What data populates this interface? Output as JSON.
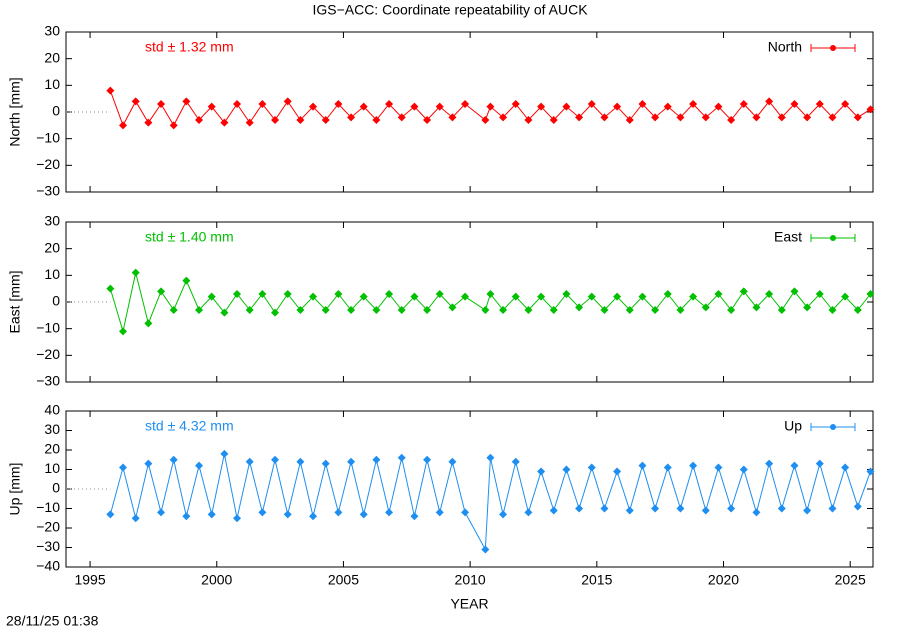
{
  "title": "IGS−ACC: Coordinate repeatability of AUCK",
  "timestamp": "28/11/25 01:38",
  "chart_data": [
    {
      "type": "line",
      "ylabel": "North [mm]",
      "annotation": "std ± 1.32 mm",
      "x": [
        1995.8,
        1996.3,
        1996.8,
        1997.3,
        1997.8,
        1998.3,
        1998.8,
        1999.3,
        1999.8,
        2000.3,
        2000.8,
        2001.3,
        2001.8,
        2002.3,
        2002.8,
        2003.3,
        2003.8,
        2004.3,
        2004.8,
        2005.3,
        2005.8,
        2006.3,
        2006.8,
        2007.3,
        2007.8,
        2008.3,
        2008.8,
        2009.3,
        2009.8,
        2010.6,
        2010.8,
        2011.3,
        2011.8,
        2012.3,
        2012.8,
        2013.3,
        2013.8,
        2014.3,
        2014.8,
        2015.3,
        2015.8,
        2016.3,
        2016.8,
        2017.3,
        2017.8,
        2018.3,
        2018.8,
        2019.3,
        2019.8,
        2020.3,
        2020.8,
        2021.3,
        2021.8,
        2022.3,
        2022.8,
        2023.3,
        2023.8,
        2024.3,
        2024.8,
        2025.3,
        2025.8
      ],
      "series": [
        {
          "name": "North",
          "color": "#ff0000",
          "values": [
            8,
            -5,
            4,
            -4,
            3,
            -5,
            4,
            -3,
            2,
            -4,
            3,
            -4,
            3,
            -3,
            4,
            -3,
            2,
            -3,
            3,
            -2,
            2,
            -3,
            3,
            -2,
            2,
            -3,
            2,
            -2,
            3,
            -3,
            2,
            -2,
            3,
            -3,
            2,
            -3,
            2,
            -2,
            3,
            -2,
            2,
            -3,
            3,
            -2,
            2,
            -2,
            3,
            -2,
            2,
            -3,
            3,
            -2,
            4,
            -2,
            3,
            -2,
            3,
            -2,
            3,
            -2,
            1
          ]
        }
      ],
      "xlim": [
        1994.05,
        2025.9
      ],
      "xticks": [
        1995,
        2000,
        2005,
        2010,
        2015,
        2020,
        2025
      ],
      "ylim": [
        -30,
        30
      ],
      "yticks": [
        {
          "value": -30,
          "label": "−30"
        },
        {
          "value": -20,
          "label": "−20"
        },
        {
          "value": -10,
          "label": "−10"
        },
        0,
        10,
        20,
        30
      ]
    },
    {
      "type": "line",
      "ylabel": "East [mm]",
      "annotation": "std ± 1.40 mm",
      "x": [
        1995.8,
        1996.3,
        1996.8,
        1997.3,
        1997.8,
        1998.3,
        1998.8,
        1999.3,
        1999.8,
        2000.3,
        2000.8,
        2001.3,
        2001.8,
        2002.3,
        2002.8,
        2003.3,
        2003.8,
        2004.3,
        2004.8,
        2005.3,
        2005.8,
        2006.3,
        2006.8,
        2007.3,
        2007.8,
        2008.3,
        2008.8,
        2009.3,
        2009.8,
        2010.6,
        2010.8,
        2011.3,
        2011.8,
        2012.3,
        2012.8,
        2013.3,
        2013.8,
        2014.3,
        2014.8,
        2015.3,
        2015.8,
        2016.3,
        2016.8,
        2017.3,
        2017.8,
        2018.3,
        2018.8,
        2019.3,
        2019.8,
        2020.3,
        2020.8,
        2021.3,
        2021.8,
        2022.3,
        2022.8,
        2023.3,
        2023.8,
        2024.3,
        2024.8,
        2025.3,
        2025.8
      ],
      "series": [
        {
          "name": "East",
          "color": "#00c000",
          "values": [
            5,
            -11,
            11,
            -8,
            4,
            -3,
            8,
            -3,
            2,
            -4,
            3,
            -3,
            3,
            -4,
            3,
            -3,
            2,
            -3,
            3,
            -3,
            2,
            -3,
            3,
            -3,
            2,
            -3,
            3,
            -2,
            2,
            -3,
            3,
            -3,
            2,
            -3,
            2,
            -3,
            3,
            -2,
            2,
            -3,
            2,
            -3,
            2,
            -3,
            3,
            -3,
            2,
            -2,
            3,
            -3,
            4,
            -2,
            3,
            -3,
            4,
            -2,
            3,
            -3,
            2,
            -3,
            3
          ]
        }
      ],
      "xlim": [
        1994.05,
        2025.9
      ],
      "xticks": [
        1995,
        2000,
        2005,
        2010,
        2015,
        2020,
        2025
      ],
      "ylim": [
        -30,
        30
      ],
      "yticks": [
        {
          "value": -30,
          "label": "−30"
        },
        {
          "value": -20,
          "label": "−20"
        },
        {
          "value": -10,
          "label": "−10"
        },
        0,
        10,
        20,
        30
      ]
    },
    {
      "type": "line",
      "ylabel": "Up [mm]",
      "annotation": "std ± 4.32 mm",
      "xlabel": "YEAR",
      "x": [
        1995.8,
        1996.3,
        1996.8,
        1997.3,
        1997.8,
        1998.3,
        1998.8,
        1999.3,
        1999.8,
        2000.3,
        2000.8,
        2001.3,
        2001.8,
        2002.3,
        2002.8,
        2003.3,
        2003.8,
        2004.3,
        2004.8,
        2005.3,
        2005.8,
        2006.3,
        2006.8,
        2007.3,
        2007.8,
        2008.3,
        2008.8,
        2009.3,
        2009.8,
        2010.6,
        2010.8,
        2011.3,
        2011.8,
        2012.3,
        2012.8,
        2013.3,
        2013.8,
        2014.3,
        2014.8,
        2015.3,
        2015.8,
        2016.3,
        2016.8,
        2017.3,
        2017.8,
        2018.3,
        2018.8,
        2019.3,
        2019.8,
        2020.3,
        2020.8,
        2021.3,
        2021.8,
        2022.3,
        2022.8,
        2023.3,
        2023.8,
        2024.3,
        2024.8,
        2025.3,
        2025.8
      ],
      "series": [
        {
          "name": "Up",
          "color": "#1e8ff0",
          "values": [
            -13,
            11,
            -15,
            13,
            -12,
            15,
            -14,
            12,
            -13,
            18,
            -15,
            14,
            -12,
            15,
            -13,
            14,
            -14,
            13,
            -12,
            14,
            -13,
            15,
            -12,
            16,
            -14,
            15,
            -12,
            14,
            -12,
            -31,
            16,
            -13,
            14,
            -12,
            9,
            -11,
            10,
            -10,
            11,
            -10,
            9,
            -11,
            12,
            -10,
            11,
            -10,
            12,
            -11,
            11,
            -10,
            10,
            -12,
            13,
            -10,
            12,
            -11,
            13,
            -10,
            11,
            -9,
            9
          ]
        }
      ],
      "xlim": [
        1994.05,
        2025.9
      ],
      "xticks": [
        1995,
        2000,
        2005,
        2010,
        2015,
        2020,
        2025
      ],
      "ylim": [
        -40,
        40
      ],
      "yticks": [
        {
          "value": -40,
          "label": "−40"
        },
        {
          "value": -30,
          "label": "−30"
        },
        {
          "value": -20,
          "label": "−20"
        },
        {
          "value": -10,
          "label": "−10"
        },
        0,
        10,
        20,
        30,
        40
      ]
    }
  ]
}
